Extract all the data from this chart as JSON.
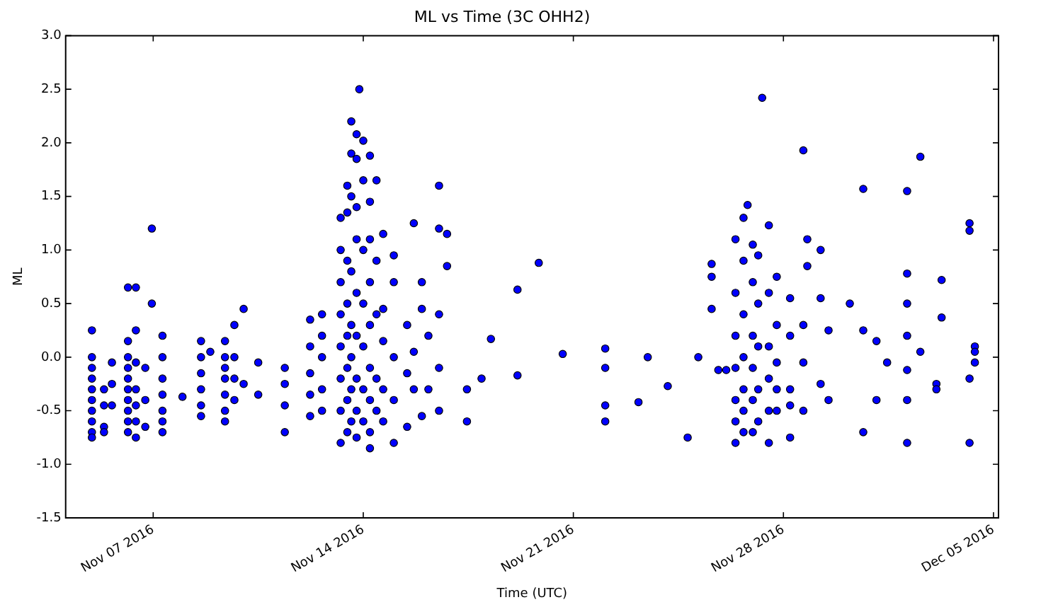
{
  "chart_data": {
    "type": "scatter",
    "title": "ML vs Time (3C OHH2)",
    "xlabel": "Time (UTC)",
    "ylabel": "ML",
    "xlim": [
      "2016-11-04T02:00",
      "2016-12-05T04:00"
    ],
    "xticks": [
      {
        "value": "2016-11-07",
        "label": "Nov 07 2016"
      },
      {
        "value": "2016-11-14",
        "label": "Nov 14 2016"
      },
      {
        "value": "2016-11-21",
        "label": "Nov 21 2016"
      },
      {
        "value": "2016-11-28",
        "label": "Nov 28 2016"
      },
      {
        "value": "2016-12-05",
        "label": "Dec 05 2016"
      }
    ],
    "ylim": [
      -1.5,
      3.0
    ],
    "yticks": [
      -1.5,
      {
        "value": -1.0,
        "label": "-1.0"
      },
      -0.5,
      {
        "value": 0.0,
        "label": "0.0"
      },
      0.5,
      {
        "value": 1.0,
        "label": "1.0"
      },
      1.5,
      {
        "value": 2.0,
        "label": "2.0"
      },
      2.5,
      {
        "value": 3.0,
        "label": "3.0"
      }
    ],
    "grid": false,
    "legend": false,
    "marker": "circle",
    "series": [
      {
        "color": "#0000ff",
        "x": [
          "2016-11-04T23:00",
          "2016-11-04T23:00",
          "2016-11-04T23:00",
          "2016-11-04T23:00",
          "2016-11-04T23:00",
          "2016-11-04T23:00",
          "2016-11-04T23:00",
          "2016-11-04T23:00",
          "2016-11-04T23:00",
          "2016-11-04T23:00",
          "2016-11-05T08:40",
          "2016-11-05T08:40",
          "2016-11-05T08:40",
          "2016-11-05T08:40",
          "2016-11-05T15:00",
          "2016-11-05T15:00",
          "2016-11-05T15:00",
          "2016-11-06T03:50",
          "2016-11-06T03:50",
          "2016-11-06T03:50",
          "2016-11-06T03:50",
          "2016-11-06T03:50",
          "2016-11-06T03:50",
          "2016-11-06T03:50",
          "2016-11-06T03:50",
          "2016-11-06T03:50",
          "2016-11-06T03:50",
          "2016-11-06T10:10",
          "2016-11-06T10:10",
          "2016-11-06T10:10",
          "2016-11-06T10:10",
          "2016-11-06T10:10",
          "2016-11-06T10:10",
          "2016-11-06T10:10",
          "2016-11-06T17:40",
          "2016-11-06T17:40",
          "2016-11-06T17:40",
          "2016-11-06T22:55",
          "2016-11-06T22:55",
          "2016-11-07T07:25",
          "2016-11-07T07:25",
          "2016-11-07T07:25",
          "2016-11-07T07:25",
          "2016-11-07T07:25",
          "2016-11-07T07:25",
          "2016-11-07T07:25",
          "2016-11-07T23:25",
          "2016-11-08T14:15",
          "2016-11-08T14:15",
          "2016-11-08T14:15",
          "2016-11-08T14:15",
          "2016-11-08T14:15",
          "2016-11-08T14:15",
          "2016-11-08T21:40",
          "2016-11-09T09:25",
          "2016-11-09T09:25",
          "2016-11-09T09:25",
          "2016-11-09T09:25",
          "2016-11-09T09:25",
          "2016-11-09T09:25",
          "2016-11-09T09:25",
          "2016-11-09T16:55",
          "2016-11-09T16:55",
          "2016-11-09T16:55",
          "2016-11-09T16:55",
          "2016-11-10T00:20",
          "2016-11-10T00:20",
          "2016-11-10T12:00",
          "2016-11-10T12:00",
          "2016-11-11T09:15",
          "2016-11-11T09:15",
          "2016-11-11T09:15",
          "2016-11-11T09:15",
          "2016-11-12T05:30",
          "2016-11-12T05:30",
          "2016-11-12T05:30",
          "2016-11-12T05:30",
          "2016-11-12T05:30",
          "2016-11-12T15:00",
          "2016-11-12T15:00",
          "2016-11-12T15:00",
          "2016-11-12T15:00",
          "2016-11-12T15:00",
          "2016-11-13T05:55",
          "2016-11-13T05:55",
          "2016-11-13T05:55",
          "2016-11-13T05:55",
          "2016-11-13T05:55",
          "2016-11-13T05:55",
          "2016-11-13T05:55",
          "2016-11-13T05:55",
          "2016-11-13T11:15",
          "2016-11-13T11:15",
          "2016-11-13T11:15",
          "2016-11-13T11:15",
          "2016-11-13T11:15",
          "2016-11-13T11:15",
          "2016-11-13T11:15",
          "2016-11-13T11:15",
          "2016-11-13T14:25",
          "2016-11-13T14:25",
          "2016-11-13T14:25",
          "2016-11-13T14:25",
          "2016-11-13T14:25",
          "2016-11-13T14:25",
          "2016-11-13T14:25",
          "2016-11-13T14:25",
          "2016-11-13T18:40",
          "2016-11-13T18:40",
          "2016-11-13T18:40",
          "2016-11-13T18:40",
          "2016-11-13T18:40",
          "2016-11-13T18:40",
          "2016-11-13T18:40",
          "2016-11-13T18:40",
          "2016-11-13T18:40",
          "2016-11-13T20:50",
          "2016-11-14T00:00",
          "2016-11-14T00:00",
          "2016-11-14T00:00",
          "2016-11-14T00:00",
          "2016-11-14T00:00",
          "2016-11-14T00:00",
          "2016-11-14T00:00",
          "2016-11-14T05:20",
          "2016-11-14T05:20",
          "2016-11-14T05:20",
          "2016-11-14T05:20",
          "2016-11-14T05:20",
          "2016-11-14T05:20",
          "2016-11-14T05:20",
          "2016-11-14T05:20",
          "2016-11-14T05:20",
          "2016-11-14T10:35",
          "2016-11-14T10:35",
          "2016-11-14T10:35",
          "2016-11-14T10:35",
          "2016-11-14T10:35",
          "2016-11-14T15:55",
          "2016-11-14T15:55",
          "2016-11-14T15:55",
          "2016-11-14T15:55",
          "2016-11-14T15:55",
          "2016-11-15T00:25",
          "2016-11-15T00:25",
          "2016-11-15T00:25",
          "2016-11-15T00:25",
          "2016-11-15T00:25",
          "2016-11-15T11:05",
          "2016-11-15T11:05",
          "2016-11-15T11:05",
          "2016-11-15T16:25",
          "2016-11-15T16:25",
          "2016-11-15T16:25",
          "2016-11-15T22:50",
          "2016-11-15T22:50",
          "2016-11-15T22:50",
          "2016-11-16T04:05",
          "2016-11-16T04:05",
          "2016-11-16T12:35",
          "2016-11-16T12:35",
          "2016-11-16T12:35",
          "2016-11-16T12:35",
          "2016-11-16T12:35",
          "2016-11-16T19:00",
          "2016-11-16T19:00",
          "2016-11-17T10:55",
          "2016-11-17T10:55",
          "2016-11-17T22:35",
          "2016-11-18T06:05",
          "2016-11-19T03:20",
          "2016-11-19T03:20",
          "2016-11-19T20:20",
          "2016-11-20T15:30",
          "2016-11-22T01:30",
          "2016-11-22T01:30",
          "2016-11-22T01:30",
          "2016-11-22T01:30",
          "2016-11-23T04:05",
          "2016-11-23T11:30",
          "2016-11-24T03:30",
          "2016-11-24T19:25",
          "2016-11-25T03:55",
          "2016-11-25T14:35",
          "2016-11-25T14:35",
          "2016-11-25T14:35",
          "2016-11-25T19:55",
          "2016-11-26T02:15",
          "2016-11-26T09:40",
          "2016-11-26T09:40",
          "2016-11-26T09:40",
          "2016-11-26T09:40",
          "2016-11-26T09:40",
          "2016-11-26T09:40",
          "2016-11-26T09:40",
          "2016-11-26T16:05",
          "2016-11-26T16:05",
          "2016-11-26T16:05",
          "2016-11-26T16:05",
          "2016-11-26T16:05",
          "2016-11-26T16:05",
          "2016-11-26T16:05",
          "2016-11-26T19:20",
          "2016-11-26T23:30",
          "2016-11-26T23:30",
          "2016-11-26T23:30",
          "2016-11-26T23:30",
          "2016-11-26T23:30",
          "2016-11-26T23:30",
          "2016-11-27T03:50",
          "2016-11-27T03:50",
          "2016-11-27T03:50",
          "2016-11-27T03:50",
          "2016-11-27T03:50",
          "2016-11-27T07:00",
          "2016-11-27T12:20",
          "2016-11-27T12:20",
          "2016-11-27T12:20",
          "2016-11-27T12:20",
          "2016-11-27T12:20",
          "2016-11-27T12:20",
          "2016-11-27T18:40",
          "2016-11-27T18:40",
          "2016-11-27T18:40",
          "2016-11-27T18:40",
          "2016-11-27T18:40",
          "2016-11-28T05:20",
          "2016-11-28T05:20",
          "2016-11-28T05:20",
          "2016-11-28T05:20",
          "2016-11-28T05:20",
          "2016-11-28T15:55",
          "2016-11-28T15:55",
          "2016-11-28T15:55",
          "2016-11-28T15:55",
          "2016-11-28T19:05",
          "2016-11-28T19:05",
          "2016-11-29T05:45",
          "2016-11-29T05:45",
          "2016-11-29T05:45",
          "2016-11-29T12:05",
          "2016-11-29T12:05",
          "2016-11-30T05:05",
          "2016-11-30T15:50",
          "2016-11-30T15:50",
          "2016-11-30T15:50",
          "2016-12-01T02:25",
          "2016-12-01T02:25",
          "2016-12-01T10:55",
          "2016-12-02T02:55",
          "2016-12-02T02:55",
          "2016-12-02T02:55",
          "2016-12-02T02:55",
          "2016-12-02T02:55",
          "2016-12-02T02:55",
          "2016-12-02T02:55",
          "2016-12-02T13:30",
          "2016-12-02T13:30",
          "2016-12-03T02:20",
          "2016-12-03T02:20",
          "2016-12-03T06:30",
          "2016-12-03T06:30",
          "2016-12-04T04:50",
          "2016-12-04T04:50",
          "2016-12-04T04:50",
          "2016-12-04T04:50",
          "2016-12-04T09:05",
          "2016-12-04T09:05",
          "2016-12-04T09:05"
        ],
        "values": [
          0.25,
          0.0,
          -0.1,
          -0.2,
          -0.3,
          -0.4,
          -0.5,
          -0.6,
          -0.7,
          -0.75,
          -0.65,
          -0.7,
          -0.45,
          -0.3,
          -0.45,
          -0.25,
          -0.05,
          0.65,
          0.15,
          0.0,
          -0.1,
          -0.2,
          -0.3,
          -0.4,
          -0.5,
          -0.6,
          -0.7,
          0.65,
          0.25,
          -0.05,
          -0.3,
          -0.45,
          -0.6,
          -0.75,
          -0.1,
          -0.4,
          -0.65,
          1.2,
          0.5,
          0.2,
          0.0,
          -0.2,
          -0.35,
          -0.5,
          -0.6,
          -0.7,
          -0.37,
          0.15,
          0.0,
          -0.15,
          -0.3,
          -0.45,
          -0.55,
          0.05,
          0.15,
          0.0,
          -0.1,
          -0.2,
          -0.35,
          -0.5,
          -0.6,
          0.3,
          0.0,
          -0.2,
          -0.4,
          0.45,
          -0.25,
          -0.05,
          -0.35,
          -0.1,
          -0.25,
          -0.45,
          -0.7,
          0.35,
          0.1,
          -0.15,
          -0.35,
          -0.55,
          0.4,
          0.2,
          0.0,
          -0.3,
          -0.5,
          1.3,
          1.0,
          0.7,
          0.4,
          0.1,
          -0.2,
          -0.5,
          -0.8,
          1.6,
          1.35,
          0.9,
          0.5,
          0.2,
          -0.1,
          -0.4,
          -0.7,
          2.2,
          1.9,
          1.5,
          0.8,
          0.3,
          0.0,
          -0.3,
          -0.6,
          2.08,
          1.85,
          1.4,
          1.1,
          0.6,
          0.2,
          -0.2,
          -0.5,
          -0.75,
          2.5,
          2.02,
          1.65,
          1.0,
          0.5,
          0.1,
          -0.3,
          -0.6,
          1.88,
          1.45,
          1.1,
          0.7,
          0.3,
          -0.1,
          -0.4,
          -0.7,
          -0.85,
          1.65,
          0.9,
          0.4,
          -0.2,
          -0.5,
          1.15,
          0.45,
          0.15,
          -0.3,
          -0.6,
          0.95,
          0.7,
          0.0,
          -0.4,
          -0.8,
          0.3,
          -0.15,
          -0.65,
          1.25,
          0.05,
          -0.3,
          0.7,
          0.45,
          -0.55,
          0.2,
          -0.3,
          1.6,
          1.2,
          0.4,
          -0.1,
          -0.5,
          1.15,
          0.85,
          -0.3,
          -0.6,
          -0.2,
          0.17,
          0.63,
          -0.17,
          0.88,
          0.03,
          0.08,
          -0.1,
          -0.45,
          -0.6,
          -0.42,
          0.0,
          -0.27,
          -0.75,
          0.0,
          0.87,
          0.75,
          0.45,
          -0.12,
          -0.12,
          1.1,
          0.6,
          0.2,
          -0.1,
          -0.4,
          -0.6,
          -0.8,
          1.3,
          0.9,
          0.4,
          0.0,
          -0.3,
          -0.5,
          -0.7,
          1.42,
          1.05,
          0.7,
          0.2,
          -0.1,
          -0.4,
          -0.7,
          0.95,
          0.5,
          0.1,
          -0.3,
          -0.6,
          2.42,
          1.23,
          0.6,
          0.1,
          -0.2,
          -0.5,
          -0.8,
          0.75,
          0.3,
          -0.05,
          -0.3,
          -0.5,
          0.55,
          0.2,
          -0.3,
          -0.45,
          -0.75,
          1.93,
          0.3,
          -0.05,
          -0.5,
          1.1,
          0.85,
          1.0,
          0.55,
          -0.25,
          0.25,
          -0.4,
          0.5,
          1.57,
          0.25,
          -0.7,
          0.15,
          -0.4,
          -0.05,
          1.55,
          0.78,
          0.5,
          0.2,
          -0.12,
          -0.4,
          -0.8,
          1.87,
          0.05,
          -0.25,
          -0.3,
          0.72,
          0.37,
          1.25,
          1.18,
          -0.2,
          -0.8,
          0.1,
          0.05,
          -0.05
        ]
      }
    ]
  }
}
